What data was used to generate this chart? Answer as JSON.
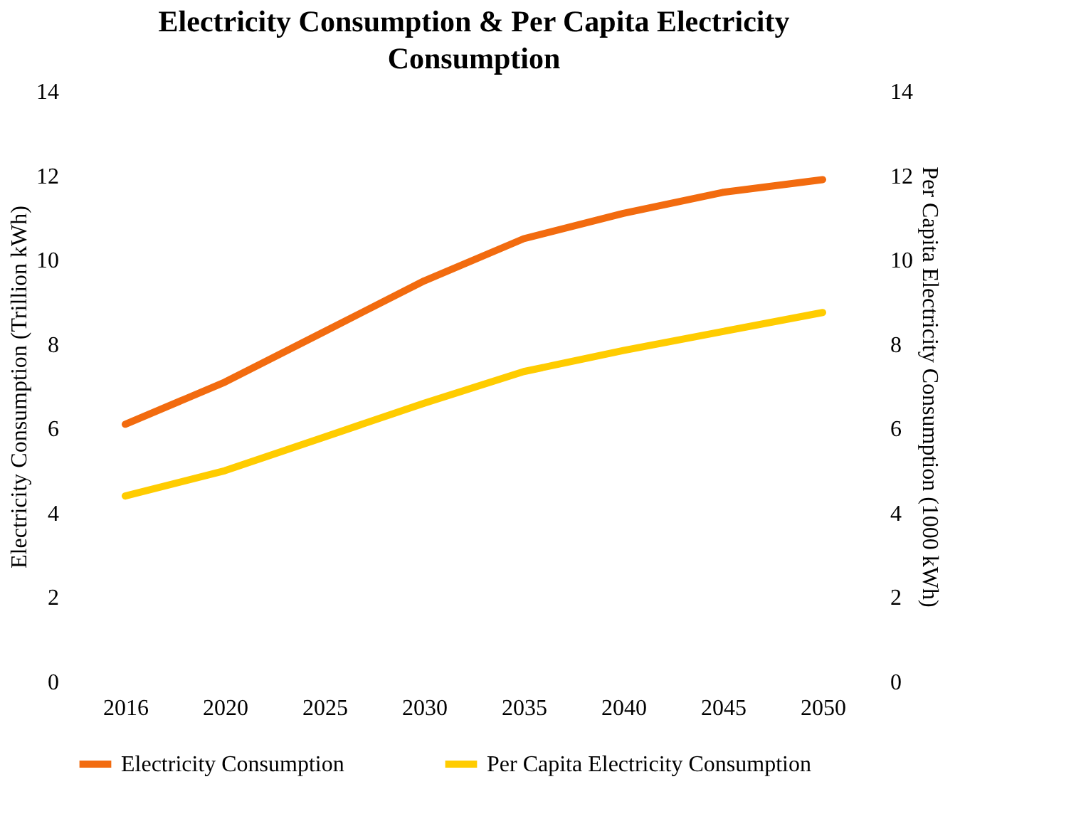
{
  "chart_data": {
    "type": "line",
    "title": "Electricity Consumption & Per Capita Electricity Consumption",
    "ylabel": "Electricity Consumption (Trillion kWh)",
    "y2label": "Per Capita Electricity Consumption (1000 kWh)",
    "categories": [
      "2016",
      "2020",
      "2025",
      "2030",
      "2035",
      "2040",
      "2045",
      "2050"
    ],
    "series": [
      {
        "name": "Electricity Consumption",
        "color": "#f26b0f",
        "values": [
          6.1,
          7.1,
          8.3,
          9.5,
          10.5,
          11.1,
          11.6,
          11.9
        ]
      },
      {
        "name": "Per Capita Electricity Consumption",
        "color": "#ffcc00",
        "axis": "y2",
        "values": [
          4.4,
          5.0,
          5.8,
          6.6,
          7.35,
          7.85,
          8.3,
          8.75
        ]
      }
    ],
    "ylim": [
      0,
      14
    ],
    "yticks": [
      0,
      2,
      4,
      6,
      8,
      10,
      12,
      14
    ],
    "y2lim": [
      0,
      14
    ],
    "y2ticks": [
      0,
      2,
      4,
      6,
      8,
      10,
      12,
      14
    ],
    "grid": false,
    "legend": "bottom",
    "marker": "none",
    "line_style": "solid"
  }
}
